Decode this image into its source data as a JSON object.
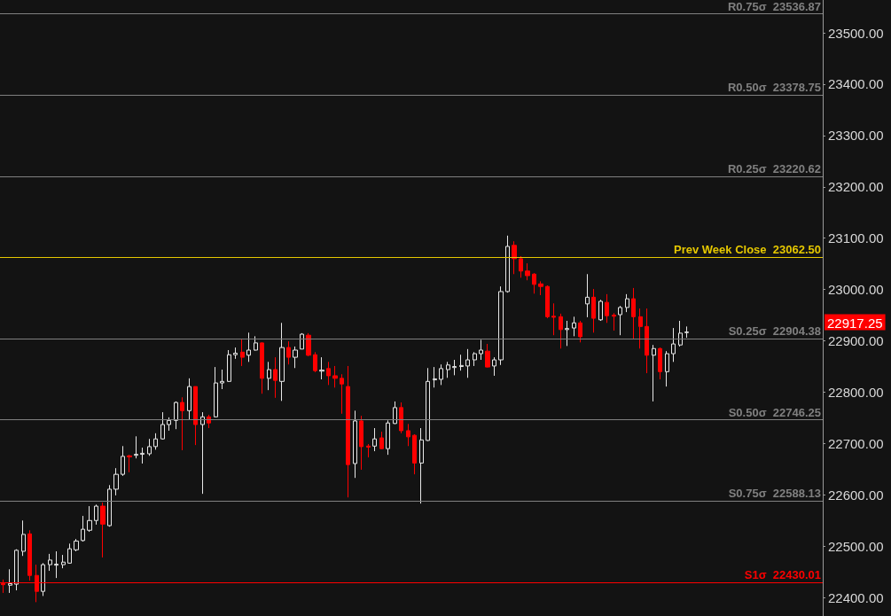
{
  "chart_data": {
    "type": "candlestick",
    "categories": [
      null,
      null,
      null,
      null,
      null,
      null,
      null,
      null,
      null,
      null,
      null,
      null,
      null,
      null,
      null,
      null,
      null,
      null,
      null,
      null,
      null,
      null,
      null,
      null,
      null,
      null,
      null,
      null,
      null,
      null,
      null,
      null,
      null,
      null,
      null,
      null,
      null,
      null,
      null,
      null,
      null,
      null,
      null,
      null,
      null,
      null,
      null,
      null,
      null,
      null,
      null,
      null,
      null,
      null,
      null,
      null,
      null,
      null,
      null,
      null,
      null,
      null,
      null,
      null,
      null,
      null,
      null,
      null,
      null,
      null,
      null,
      null,
      null,
      null,
      null,
      null,
      null,
      null,
      null,
      null,
      null,
      null,
      null,
      null,
      null,
      null,
      null,
      null,
      null,
      null,
      null,
      null,
      null,
      null,
      null,
      null,
      null,
      null,
      null,
      null,
      null,
      null,
      null,
      null,
      null,
      null,
      null,
      null,
      null,
      null,
      null,
      null,
      null,
      null,
      null,
      null,
      null,
      null,
      null,
      null,
      null,
      null,
      null,
      null
    ],
    "ohlc": [
      [
        22427,
        22435,
        22409,
        22425
      ],
      [
        22424,
        22455,
        22409,
        22427
      ],
      [
        22426,
        22494,
        22414,
        22492
      ],
      [
        22490,
        22550,
        22481,
        22523
      ],
      [
        22524,
        22531,
        22433,
        22443
      ],
      [
        22443,
        22464,
        22391,
        22412
      ],
      [
        22412,
        22467,
        22403,
        22464
      ],
      [
        22464,
        22485,
        22452,
        22473
      ],
      [
        22463,
        22490,
        22438,
        22465
      ],
      [
        22464,
        22483,
        22457,
        22469
      ],
      [
        22467,
        22505,
        22466,
        22495
      ],
      [
        22493,
        22514,
        22490,
        22510
      ],
      [
        22511,
        22559,
        22509,
        22533
      ],
      [
        22531,
        22578,
        22528,
        22550
      ],
      [
        22550,
        22581,
        22542,
        22578
      ],
      [
        22578,
        22585,
        22478,
        22543
      ],
      [
        22540,
        22619,
        22538,
        22611
      ],
      [
        22611,
        22652,
        22599,
        22640
      ],
      [
        22640,
        22695,
        22637,
        22675
      ],
      [
        22676,
        22678,
        22644,
        22674
      ],
      [
        22677,
        22714,
        22671,
        22679
      ],
      [
        22679,
        22692,
        22661,
        22681
      ],
      [
        22680,
        22709,
        22676,
        22694
      ],
      [
        22694,
        22720,
        22688,
        22709
      ],
      [
        22709,
        22761,
        22708,
        22737
      ],
      [
        22737,
        22751,
        22725,
        22745
      ],
      [
        22745,
        22782,
        22728,
        22780
      ],
      [
        22780,
        22790,
        22687,
        22764
      ],
      [
        22764,
        22827,
        22747,
        22811
      ],
      [
        22811,
        22811,
        22697,
        22737
      ],
      [
        22737,
        22761,
        22602,
        22752
      ],
      [
        22752,
        22756,
        22730,
        22740
      ],
      [
        22752,
        22849,
        22751,
        22818
      ],
      [
        22818,
        22844,
        22806,
        22821
      ],
      [
        22821,
        22882,
        22820,
        22873
      ],
      [
        22873,
        22887,
        22865,
        22876
      ],
      [
        22878,
        22903,
        22851,
        22868
      ],
      [
        22872,
        22916,
        22859,
        22882
      ],
      [
        22882,
        22909,
        22881,
        22896
      ],
      [
        22896,
        22897,
        22797,
        22827
      ],
      [
        22827,
        22859,
        22804,
        22844
      ],
      [
        22844,
        22868,
        22789,
        22823
      ],
      [
        22821,
        22935,
        22783,
        22887
      ],
      [
        22887,
        22899,
        22854,
        22868
      ],
      [
        22868,
        22889,
        22847,
        22882
      ],
      [
        22884,
        22915,
        22884,
        22913
      ],
      [
        22911,
        22915,
        22870,
        22872
      ],
      [
        22873,
        22878,
        22839,
        22842
      ],
      [
        22841,
        22868,
        22825,
        22843
      ],
      [
        22846,
        22859,
        22814,
        22832
      ],
      [
        22832,
        22851,
        22809,
        22827
      ],
      [
        22827,
        22835,
        22758,
        22816
      ],
      [
        22811,
        22851,
        22595,
        22659
      ],
      [
        22661,
        22764,
        22633,
        22744
      ],
      [
        22744,
        22754,
        22649,
        22694
      ],
      [
        22695,
        22699,
        22673,
        22693
      ],
      [
        22695,
        22730,
        22685,
        22709
      ],
      [
        22711,
        22723,
        22689,
        22690
      ],
      [
        22690,
        22745,
        22678,
        22740
      ],
      [
        22739,
        22782,
        22738,
        22770
      ],
      [
        22770,
        22780,
        22720,
        22725
      ],
      [
        22725,
        22738,
        22695,
        22713
      ],
      [
        22716,
        22718,
        22640,
        22662
      ],
      [
        22662,
        22730,
        22583,
        22707
      ],
      [
        22706,
        22847,
        22705,
        22821
      ],
      [
        22824,
        22849,
        22809,
        22826
      ],
      [
        22825,
        22854,
        22814,
        22846
      ],
      [
        22844,
        22859,
        22828,
        22853
      ],
      [
        22848,
        22863,
        22833,
        22850
      ],
      [
        22850,
        22873,
        22842,
        22852
      ],
      [
        22851,
        22884,
        22828,
        22863
      ],
      [
        22863,
        22878,
        22851,
        22875
      ],
      [
        22875,
        22902,
        22863,
        22882
      ],
      [
        22880,
        22894,
        22848,
        22849
      ],
      [
        22851,
        22868,
        22832,
        22863
      ],
      [
        22863,
        23006,
        22853,
        22996
      ],
      [
        22996,
        23105,
        22994,
        23084
      ],
      [
        23086,
        23094,
        23030,
        23060
      ],
      [
        23060,
        23065,
        23023,
        23036
      ],
      [
        23036,
        23051,
        23018,
        23027
      ],
      [
        23030,
        23032,
        22992,
        23010
      ],
      [
        23011,
        23016,
        22989,
        23006
      ],
      [
        23006,
        23008,
        22944,
        22947
      ],
      [
        22948,
        22973,
        22911,
        22946
      ],
      [
        22947,
        22953,
        22885,
        22922
      ],
      [
        22922,
        22939,
        22890,
        22924
      ],
      [
        22925,
        22947,
        22909,
        22935
      ],
      [
        22935,
        22939,
        22897,
        22908
      ],
      [
        22972,
        23030,
        22946,
        22985
      ],
      [
        22985,
        23001,
        22916,
        22944
      ],
      [
        22941,
        22980,
        22939,
        22977
      ],
      [
        22975,
        22991,
        22935,
        22949
      ],
      [
        22950,
        22954,
        22920,
        22948
      ],
      [
        22951,
        22968,
        22911,
        22965
      ],
      [
        22965,
        22991,
        22956,
        22982
      ],
      [
        22982,
        23003,
        22903,
        22947
      ],
      [
        22947,
        22963,
        22885,
        22928
      ],
      [
        22928,
        22963,
        22837,
        22872
      ],
      [
        22872,
        22892,
        22782,
        22885
      ],
      [
        22885,
        22887,
        22825,
        22840
      ],
      [
        22840,
        22880,
        22811,
        22875
      ],
      [
        22875,
        22925,
        22859,
        22894
      ],
      [
        22892,
        22939,
        22889,
        22915
      ],
      [
        22916,
        22928,
        22906,
        22917.25
      ],
      null,
      null,
      null,
      null,
      null,
      null,
      null,
      null,
      null,
      null,
      null,
      null,
      null,
      null,
      null,
      null,
      null,
      null,
      null,
      null
    ],
    "ylim": [
      22364,
      23564
    ],
    "yticks": [
      {
        "value": 22400,
        "label": "22400.00"
      },
      {
        "value": 22500,
        "label": "22500.00"
      },
      {
        "value": 22600,
        "label": "22600.00"
      },
      {
        "value": 22700,
        "label": "22700.00"
      },
      {
        "value": 22800,
        "label": "22800.00"
      },
      {
        "value": 22900,
        "label": "22900.00"
      },
      {
        "value": 23000,
        "label": "23000.00"
      },
      {
        "value": 23100,
        "label": "23100.00"
      },
      {
        "value": 23200,
        "label": "23200.00"
      },
      {
        "value": 23300,
        "label": "23300.00"
      },
      {
        "value": 23400,
        "label": "23400.00"
      },
      {
        "value": 23500,
        "label": "23500.00"
      }
    ],
    "tick_labels": "y",
    "grid": false,
    "ref_lines": [
      {
        "axis": "y",
        "value": 23536.87,
        "label": "R0.75σ  23536.87",
        "color": "#808080"
      },
      {
        "axis": "y",
        "value": 23378.75,
        "label": "R0.50σ  23378.75",
        "color": "#808080"
      },
      {
        "axis": "y",
        "value": 23220.62,
        "label": "R0.25σ  23220.62",
        "color": "#808080"
      },
      {
        "axis": "y",
        "value": 23062.5,
        "label": "Prev Week Close  23062.50",
        "color": "#e6c800"
      },
      {
        "axis": "y",
        "value": 22904.38,
        "label": "S0.25σ  22904.38",
        "color": "#808080"
      },
      {
        "axis": "y",
        "value": 22746.25,
        "label": "S0.50σ  22746.25",
        "color": "#808080"
      },
      {
        "axis": "y",
        "value": 22588.13,
        "label": "S0.75σ  22588.13",
        "color": "#808080"
      },
      {
        "axis": "y",
        "value": 22430.01,
        "label": "S1σ  22430.01",
        "color": "#ff0000"
      }
    ],
    "annotations": [
      "22917.25"
    ]
  }
}
